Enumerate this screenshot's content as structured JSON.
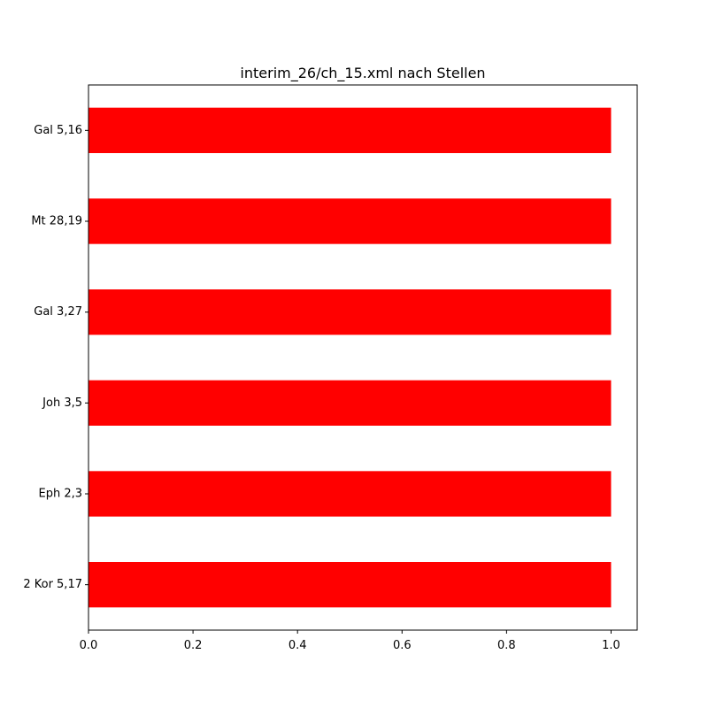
{
  "chart_data": {
    "type": "bar",
    "orientation": "horizontal",
    "title": "interim_26/ch_15.xml nach Stellen",
    "xlabel": "",
    "ylabel": "",
    "categories": [
      "2 Kor 5,17",
      "Eph 2,3",
      "Joh 3,5",
      "Gal 3,27",
      "Mt 28,19",
      "Gal 5,16"
    ],
    "values": [
      1,
      1,
      1,
      1,
      1,
      1
    ],
    "xlim": [
      0,
      1.05
    ],
    "xticks": [
      "0.0",
      "0.2",
      "0.4",
      "0.6",
      "0.8",
      "1.0"
    ],
    "bar_color": "#ff0000",
    "grid": false,
    "legend": "none"
  }
}
